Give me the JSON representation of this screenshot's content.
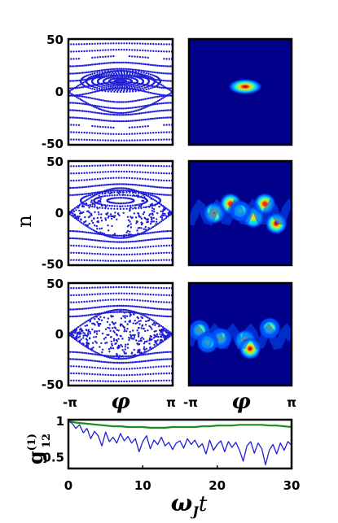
{
  "chart_data": [
    {
      "type": "scatter",
      "panel": "phase-space",
      "ylabel": "n",
      "xlabel": "φ",
      "x_ticks": [
        "-π",
        "π"
      ],
      "y_ticks": [
        "50",
        "0",
        "-50"
      ],
      "xlim": [
        -3.1416,
        3.1416
      ],
      "ylim": [
        -50,
        50
      ],
      "rows": [
        {
          "chaos": 0.0,
          "island_center": 10,
          "island_radius_n": 10
        },
        {
          "chaos": 0.55,
          "island_center": 12,
          "island_radius_n": 8
        },
        {
          "chaos": 0.8,
          "island_center": 0,
          "island_radius_n": 0
        }
      ],
      "marker_color": "#1f1fd6"
    },
    {
      "type": "heatmap",
      "panel": "husimi-density",
      "xlabel": "φ",
      "x_ticks": [
        "-π",
        "π"
      ],
      "background_color": "#00008b",
      "colormap": [
        "#00008b",
        "#0050ff",
        "#00e5ff",
        "#7fff7f",
        "#ffe500",
        "#ff3000",
        "#8b0000"
      ],
      "rows": [
        {
          "blobs": [
            {
              "phi": 0.3,
              "n": 5,
              "amp": 1.0
            }
          ]
        },
        {
          "blobs": [
            {
              "phi": -1.6,
              "n": 0,
              "amp": 0.8
            },
            {
              "phi": -0.6,
              "n": 9,
              "amp": 0.9
            },
            {
              "phi": 0.8,
              "n": -4,
              "amp": 0.7
            },
            {
              "phi": 1.5,
              "n": 9,
              "amp": 0.9
            },
            {
              "phi": 2.2,
              "n": -10,
              "amp": 1.0
            },
            {
              "phi": 0.0,
              "n": 2,
              "amp": 0.5
            }
          ]
        },
        {
          "blobs": [
            {
              "phi": -2.5,
              "n": 4,
              "amp": 0.6
            },
            {
              "phi": -1.2,
              "n": -4,
              "amp": 0.6
            },
            {
              "phi": 0.3,
              "n": -6,
              "amp": 0.75
            },
            {
              "phi": 0.6,
              "n": -14,
              "amp": 1.0
            },
            {
              "phi": 1.8,
              "n": 6,
              "amp": 0.6
            },
            {
              "phi": -2.0,
              "n": -8,
              "amp": 0.5
            }
          ]
        }
      ]
    },
    {
      "type": "line",
      "panel": "coherence",
      "xlabel": "ω_J t",
      "xlabel_main": "ω",
      "xlabel_sub": "J",
      "xlabel_t": "t",
      "ylabel": "g(1)12",
      "ylabel_base": "g",
      "ylabel_sup": "(1)",
      "ylabel_sub": "12",
      "xlim": [
        0,
        30
      ],
      "ylim": [
        0.35,
        1.02
      ],
      "x_ticks": [
        "0",
        "10",
        "20",
        "30"
      ],
      "y_ticks": [
        "1",
        "0.5"
      ],
      "series": [
        {
          "color": "#1a8f1a",
          "x": [
            0,
            1,
            2,
            3,
            4,
            5,
            6,
            7,
            8,
            9,
            10,
            11,
            12,
            13,
            14,
            15,
            16,
            17,
            18,
            19,
            20,
            21,
            22,
            23,
            24,
            25,
            26,
            27,
            28,
            29,
            30
          ],
          "values": [
            1.0,
            0.98,
            0.97,
            0.96,
            0.95,
            0.94,
            0.93,
            0.93,
            0.92,
            0.92,
            0.92,
            0.91,
            0.91,
            0.91,
            0.92,
            0.92,
            0.92,
            0.92,
            0.93,
            0.93,
            0.94,
            0.94,
            0.94,
            0.95,
            0.95,
            0.95,
            0.95,
            0.94,
            0.94,
            0.93,
            0.92
          ]
        },
        {
          "color": "#1f1fd6",
          "x": [
            0,
            0.5,
            1,
            1.5,
            2,
            2.5,
            3,
            3.5,
            4,
            4.5,
            5,
            5.5,
            6,
            6.5,
            7,
            7.5,
            8,
            8.5,
            9,
            9.5,
            10,
            10.5,
            11,
            11.5,
            12,
            12.5,
            13,
            13.5,
            14,
            14.5,
            15,
            15.5,
            16,
            16.5,
            17,
            17.5,
            18,
            18.5,
            19,
            19.5,
            20,
            20.5,
            21,
            21.5,
            22,
            22.5,
            23,
            23.5,
            24,
            24.5,
            25,
            25.5,
            26,
            26.5,
            27,
            27.5,
            28,
            28.5,
            29,
            29.5,
            30
          ],
          "values": [
            1.0,
            0.97,
            0.9,
            0.95,
            0.84,
            0.9,
            0.76,
            0.86,
            0.8,
            0.66,
            0.85,
            0.72,
            0.78,
            0.7,
            0.83,
            0.73,
            0.79,
            0.7,
            0.76,
            0.58,
            0.72,
            0.8,
            0.62,
            0.74,
            0.68,
            0.78,
            0.66,
            0.71,
            0.61,
            0.7,
            0.73,
            0.63,
            0.76,
            0.68,
            0.74,
            0.64,
            0.69,
            0.55,
            0.74,
            0.6,
            0.68,
            0.73,
            0.58,
            0.72,
            0.64,
            0.71,
            0.6,
            0.45,
            0.66,
            0.72,
            0.56,
            0.7,
            0.62,
            0.4,
            0.6,
            0.68,
            0.55,
            0.7,
            0.6,
            0.72,
            0.67
          ]
        }
      ]
    }
  ]
}
